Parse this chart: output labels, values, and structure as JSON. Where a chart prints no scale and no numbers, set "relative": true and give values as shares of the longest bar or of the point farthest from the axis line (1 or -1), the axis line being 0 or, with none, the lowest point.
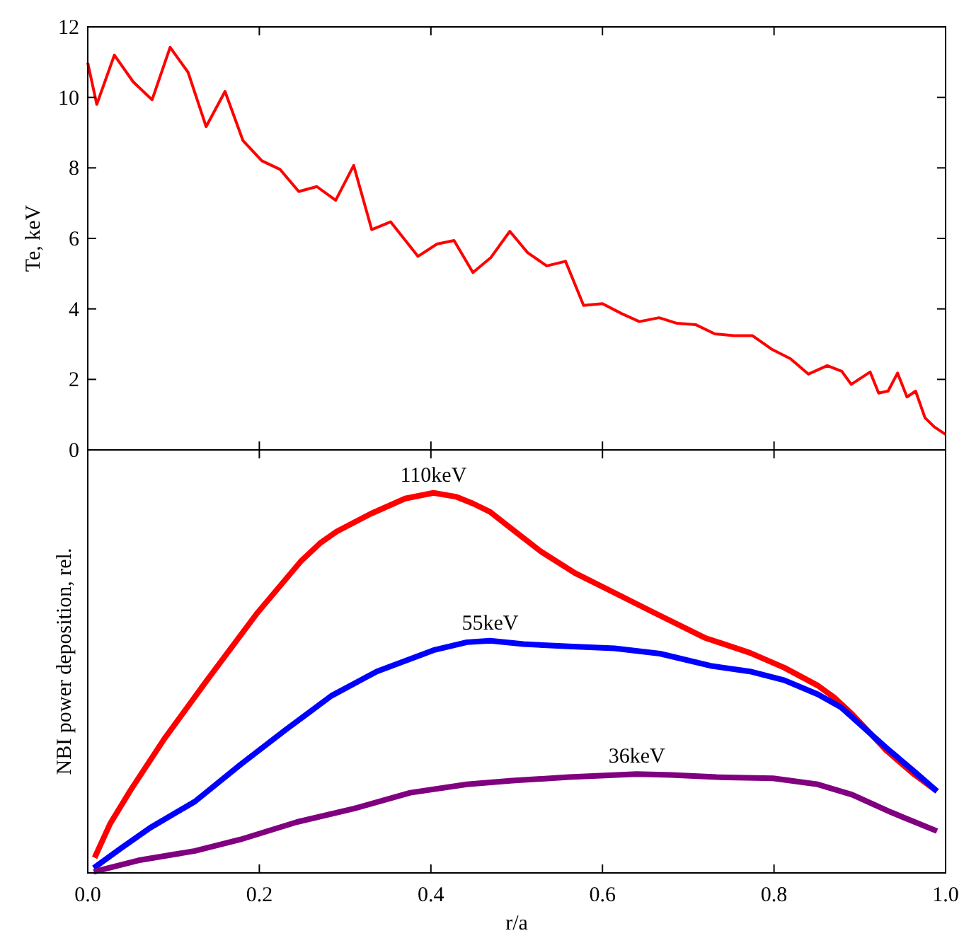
{
  "chart_data": [
    {
      "type": "line",
      "ylabel": "Te, keV",
      "xlim": [
        0,
        1
      ],
      "xticks": [
        0,
        0.2,
        0.4,
        0.6,
        0.8,
        1
      ],
      "ylim": [
        0,
        12
      ],
      "yticks": [
        0,
        2,
        4,
        6,
        8,
        10,
        12
      ],
      "tick_labels": "y",
      "grid": false,
      "line_style": "solid",
      "series": [
        {
          "color": "#ff0000",
          "x": [
            0,
            0.0105,
            0.031,
            0.053,
            0.075,
            0.096,
            0.117,
            0.138,
            0.16,
            0.181,
            0.203,
            0.224,
            0.246,
            0.267,
            0.289,
            0.31,
            0.331,
            0.353,
            0.385,
            0.407,
            0.427,
            0.449,
            0.47,
            0.492,
            0.513,
            0.535,
            0.557,
            0.578,
            0.6,
            0.622,
            0.643,
            0.666,
            0.687,
            0.709,
            0.731,
            0.753,
            0.775,
            0.797,
            0.819,
            0.84,
            0.862,
            0.879,
            0.89,
            0.912,
            0.922,
            0.933,
            0.944,
            0.955,
            0.965,
            0.976,
            0.987,
            1
          ],
          "values": [
            10.98,
            9.8,
            11.2,
            10.44,
            9.93,
            11.42,
            10.71,
            9.17,
            10.17,
            8.77,
            8.2,
            7.96,
            7.33,
            7.47,
            7.08,
            8.07,
            6.25,
            6.47,
            5.49,
            5.84,
            5.94,
            5.03,
            5.46,
            6.2,
            5.59,
            5.22,
            5.35,
            4.1,
            4.15,
            3.87,
            3.64,
            3.75,
            3.59,
            3.55,
            3.29,
            3.24,
            3.24,
            2.86,
            2.59,
            2.15,
            2.39,
            2.23,
            1.86,
            2.21,
            1.61,
            1.67,
            2.18,
            1.5,
            1.67,
            0.91,
            0.65,
            0.44
          ]
        }
      ]
    },
    {
      "type": "line",
      "xlabel": "r/a",
      "ylabel": "NBI power deposition, rel.",
      "relative": true,
      "xlim": [
        0,
        1
      ],
      "xticks": [
        {
          "value": 0,
          "label": "0.0"
        },
        {
          "value": 0.2,
          "label": "0.2"
        },
        {
          "value": 0.4,
          "label": "0.4"
        },
        {
          "value": 0.6,
          "label": "0.6"
        },
        {
          "value": 0.8,
          "label": "0.8"
        },
        {
          "value": 1,
          "label": "1.0"
        }
      ],
      "tick_labels": "x",
      "grid": false,
      "line_style": "solid",
      "series": [
        {
          "name": "110keV",
          "color": "#ff0000",
          "x": [
            0.008,
            0.026,
            0.05,
            0.089,
            0.139,
            0.198,
            0.248,
            0.271,
            0.29,
            0.33,
            0.37,
            0.403,
            0.429,
            0.449,
            0.469,
            0.495,
            0.528,
            0.568,
            0.614,
            0.66,
            0.719,
            0.772,
            0.812,
            0.851,
            0.871,
            0.891,
            0.931,
            0.964,
            0.99
          ],
          "values": [
            0.04,
            0.129,
            0.218,
            0.352,
            0.507,
            0.685,
            0.819,
            0.868,
            0.898,
            0.945,
            0.985,
            1,
            0.99,
            0.972,
            0.95,
            0.904,
            0.846,
            0.789,
            0.737,
            0.685,
            0.619,
            0.579,
            0.54,
            0.493,
            0.46,
            0.418,
            0.322,
            0.258,
            0.215
          ]
        },
        {
          "name": "55keV",
          "color": "#0000ff",
          "x": [
            0.007,
            0.04,
            0.073,
            0.125,
            0.178,
            0.231,
            0.284,
            0.337,
            0.403,
            0.442,
            0.469,
            0.508,
            0.561,
            0.614,
            0.667,
            0.726,
            0.772,
            0.812,
            0.851,
            0.878,
            0.931,
            0.964,
            0.99
          ],
          "values": [
            0.013,
            0.067,
            0.119,
            0.188,
            0.285,
            0.377,
            0.466,
            0.53,
            0.586,
            0.607,
            0.611,
            0.602,
            0.596,
            0.591,
            0.577,
            0.545,
            0.53,
            0.507,
            0.47,
            0.436,
            0.329,
            0.266,
            0.215
          ]
        },
        {
          "name": "36keV",
          "color": "#800080",
          "x": [
            0.007,
            0.059,
            0.125,
            0.178,
            0.244,
            0.31,
            0.376,
            0.442,
            0.495,
            0.561,
            0.64,
            0.68,
            0.733,
            0.799,
            0.851,
            0.891,
            0.937,
            0.99
          ],
          "values": [
            0.003,
            0.033,
            0.058,
            0.088,
            0.134,
            0.169,
            0.211,
            0.233,
            0.243,
            0.252,
            0.26,
            0.258,
            0.252,
            0.249,
            0.233,
            0.206,
            0.159,
            0.11
          ]
        }
      ]
    }
  ]
}
